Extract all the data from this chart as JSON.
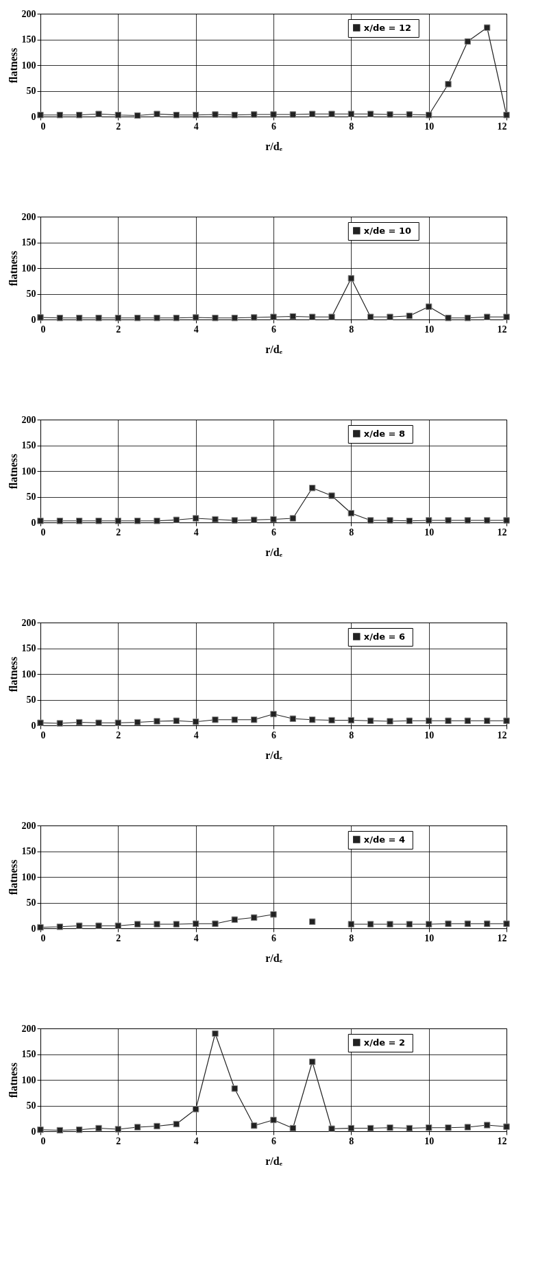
{
  "chart_data": [
    {
      "type": "line",
      "xlabel": "r/dₑ",
      "ylabel": "flatness",
      "x": [
        0,
        0.5,
        1,
        1.5,
        2,
        2.5,
        3,
        3.5,
        4,
        4.5,
        5,
        5.5,
        6,
        6.5,
        7,
        7.5,
        8,
        8.5,
        9,
        9.5,
        10,
        10.5,
        11,
        11.5,
        12
      ],
      "xlim": [
        0,
        12
      ],
      "xticks": [
        0,
        2,
        4,
        6,
        8,
        10,
        12
      ],
      "ylim": [
        0,
        200
      ],
      "yticks": [
        0,
        50,
        100,
        150,
        200
      ],
      "grid": true,
      "legend": "top right",
      "marker": "square",
      "series": [
        {
          "name": "x/de =  12",
          "color": "#222222",
          "values": [
            3,
            3,
            3,
            5,
            3,
            2,
            5,
            3,
            3,
            4,
            3,
            4,
            4,
            4,
            5,
            5,
            5,
            5,
            4,
            4,
            3,
            63,
            146,
            173,
            3
          ]
        }
      ]
    },
    {
      "type": "line",
      "xlabel": "r/dₑ",
      "ylabel": "flatness",
      "x": [
        0,
        0.5,
        1,
        1.5,
        2,
        2.5,
        3,
        3.5,
        4,
        4.5,
        5,
        5.5,
        6,
        6.5,
        7,
        7.5,
        8,
        8.5,
        9,
        9.5,
        10,
        10.5,
        11,
        11.5,
        12
      ],
      "xlim": [
        0,
        12
      ],
      "xticks": [
        0,
        2,
        4,
        6,
        8,
        10,
        12
      ],
      "ylim": [
        0,
        200
      ],
      "yticks": [
        0,
        50,
        100,
        150,
        200
      ],
      "grid": true,
      "legend": "top right",
      "marker": "square",
      "series": [
        {
          "name": "x/de =  10",
          "color": "#222222",
          "values": [
            4,
            3,
            3,
            3,
            3,
            3,
            3,
            3,
            4,
            3,
            3,
            4,
            5,
            6,
            5,
            5,
            80,
            5,
            5,
            7,
            25,
            3,
            3,
            5,
            5
          ]
        }
      ]
    },
    {
      "type": "line",
      "xlabel": "r/dₑ",
      "ylabel": "flatness",
      "x": [
        0,
        0.5,
        1,
        1.5,
        2,
        2.5,
        3,
        3.5,
        4,
        4.5,
        5,
        5.5,
        6,
        6.5,
        7,
        7.5,
        8,
        8.5,
        9,
        9.5,
        10,
        10.5,
        11,
        11.5,
        12
      ],
      "xlim": [
        0,
        12
      ],
      "xticks": [
        0,
        2,
        4,
        6,
        8,
        10,
        12
      ],
      "ylim": [
        0,
        200
      ],
      "yticks": [
        0,
        50,
        100,
        150,
        200
      ],
      "grid": true,
      "legend": "top right",
      "marker": "square",
      "series": [
        {
          "name": "x/de =  8",
          "color": "#222222",
          "values": [
            3,
            3,
            3,
            3,
            3,
            3,
            3,
            5,
            8,
            6,
            4,
            5,
            6,
            8,
            67,
            52,
            18,
            4,
            4,
            3,
            4,
            4,
            4,
            4,
            4
          ]
        }
      ]
    },
    {
      "type": "line",
      "xlabel": "r/dₑ",
      "ylabel": "flatness",
      "x": [
        0,
        0.5,
        1,
        1.5,
        2,
        2.5,
        3,
        3.5,
        4,
        4.5,
        5,
        5.5,
        6,
        6.5,
        7,
        7.5,
        8,
        8.5,
        9,
        9.5,
        10,
        10.5,
        11,
        11.5,
        12
      ],
      "xlim": [
        0,
        12
      ],
      "xticks": [
        0,
        2,
        4,
        6,
        8,
        10,
        12
      ],
      "ylim": [
        0,
        200
      ],
      "yticks": [
        0,
        50,
        100,
        150,
        200
      ],
      "grid": true,
      "legend": "top right",
      "marker": "square",
      "series": [
        {
          "name": "x/de =  6",
          "color": "#222222",
          "values": [
            5,
            4,
            6,
            5,
            5,
            6,
            8,
            9,
            7,
            11,
            11,
            11,
            22,
            13,
            11,
            10,
            10,
            9,
            8,
            9,
            9,
            9,
            9,
            9,
            9
          ]
        }
      ]
    },
    {
      "type": "line",
      "xlabel": "r/dₑ",
      "ylabel": "flatness",
      "x": [
        0,
        0.5,
        1,
        1.5,
        2,
        2.5,
        3,
        3.5,
        4,
        4.5,
        5,
        5.5,
        6,
        6.5,
        7,
        7.5,
        8,
        8.5,
        9,
        9.5,
        10,
        10.5,
        11,
        11.5,
        12
      ],
      "xlim": [
        0,
        12
      ],
      "xticks": [
        0,
        2,
        4,
        6,
        8,
        10,
        12
      ],
      "ylim": [
        0,
        200
      ],
      "yticks": [
        0,
        50,
        100,
        150,
        200
      ],
      "grid": true,
      "legend": "top right",
      "marker": "square",
      "series": [
        {
          "name": "x/de =  4",
          "color": "#222222",
          "values": [
            2,
            3,
            5,
            5,
            5,
            8,
            8,
            8,
            9,
            9,
            17,
            21,
            27,
            null,
            13,
            null,
            8,
            8,
            8,
            8,
            8,
            9,
            9,
            9,
            9
          ]
        }
      ]
    },
    {
      "type": "line",
      "xlabel": "r/dₑ",
      "ylabel": "flatness",
      "x": [
        0,
        0.5,
        1,
        1.5,
        2,
        2.5,
        3,
        3.5,
        4,
        4.5,
        5,
        5.5,
        6,
        6.5,
        7,
        7.5,
        8,
        8.5,
        9,
        9.5,
        10,
        10.5,
        11,
        11.5,
        12
      ],
      "xlim": [
        0,
        12
      ],
      "xticks": [
        0,
        2,
        4,
        6,
        8,
        10,
        12
      ],
      "ylim": [
        0,
        200
      ],
      "yticks": [
        0,
        50,
        100,
        150,
        200
      ],
      "grid": true,
      "legend": "top right",
      "marker": "square",
      "series": [
        {
          "name": "x/de =  2",
          "color": "#222222",
          "values": [
            3,
            2,
            3,
            6,
            4,
            8,
            10,
            14,
            43,
            190,
            83,
            11,
            22,
            6,
            135,
            5,
            6,
            6,
            7,
            6,
            7,
            7,
            8,
            12,
            9
          ]
        }
      ]
    }
  ]
}
